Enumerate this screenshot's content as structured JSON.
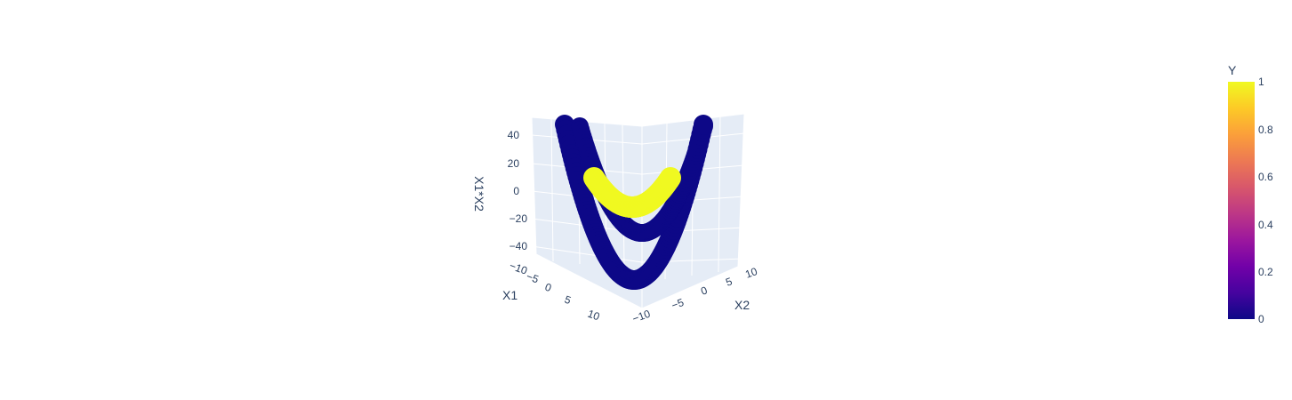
{
  "chart_data": {
    "type": "scatter3d",
    "axes": {
      "x": {
        "title": "X1",
        "ticks": [
          "−10",
          "−5",
          "0",
          "5",
          "10"
        ],
        "range": [
          -10,
          10
        ]
      },
      "y": {
        "title": "X2",
        "ticks": [
          "−10",
          "−5",
          "0",
          "5",
          "10"
        ],
        "range": [
          -10,
          10
        ]
      },
      "z": {
        "title": "X1*X2",
        "ticks": [
          "−40",
          "−20",
          "0",
          "20",
          "40"
        ],
        "range": [
          -50,
          50
        ]
      }
    },
    "colorbar": {
      "title": "Y",
      "ticks": [
        "0",
        "0.2",
        "0.4",
        "0.6",
        "0.8",
        "1"
      ],
      "range": [
        0,
        1
      ],
      "colors": [
        "#0d0887",
        "#46039f",
        "#7201a8",
        "#9c179e",
        "#bd3786",
        "#d8576b",
        "#ed7953",
        "#fb9f3a",
        "#fdca26",
        "#f0f921"
      ]
    },
    "series": [
      {
        "class": 0,
        "color": "#0d0887",
        "shape": "outer U-shaped band",
        "x1_range": [
          -10,
          10
        ],
        "x2_range": [
          -10,
          10
        ],
        "z_range": [
          -45,
          50
        ]
      },
      {
        "class": 0,
        "color": "#0d0887",
        "shape": "inner U-shaped band",
        "x1_range": [
          -7,
          7
        ],
        "x2_range": [
          -7,
          7
        ],
        "z_range": [
          -25,
          50
        ]
      },
      {
        "class": 1,
        "color": "#f0f921",
        "shape": "central U-shaped band",
        "x1_range": [
          -4,
          4
        ],
        "x2_range": [
          -4,
          4
        ],
        "z_range": [
          -15,
          15
        ]
      }
    ],
    "grid": true,
    "legend": "colorbar right"
  }
}
